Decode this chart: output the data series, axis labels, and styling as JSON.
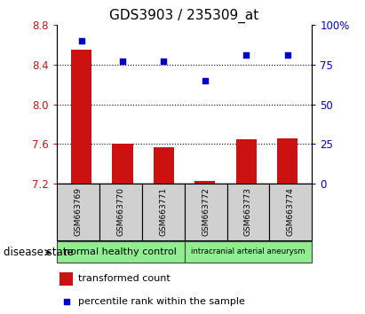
{
  "title": "GDS3903 / 235309_at",
  "samples": [
    "GSM663769",
    "GSM663770",
    "GSM663771",
    "GSM663772",
    "GSM663773",
    "GSM663774"
  ],
  "transformed_count": [
    8.55,
    7.6,
    7.57,
    7.23,
    7.65,
    7.66
  ],
  "percentile_rank": [
    90,
    77,
    77,
    65,
    81,
    81
  ],
  "ylim_left": [
    7.2,
    8.8
  ],
  "ylim_right": [
    0,
    100
  ],
  "yticks_left": [
    7.2,
    7.6,
    8.0,
    8.4,
    8.8
  ],
  "yticks_right": [
    0,
    25,
    50,
    75,
    100
  ],
  "bar_color": "#cc1111",
  "scatter_color": "#0000cc",
  "group1_label": "normal healthy control",
  "group2_label": "intracranial arterial aneurysm",
  "group_color": "#90ee90",
  "disease_state_label": "disease state",
  "legend_bar_label": "transformed count",
  "legend_scatter_label": "percentile rank within the sample",
  "title_fontsize": 11,
  "tick_fontsize": 8.5,
  "bar_width": 0.5,
  "dotted_lines": [
    7.6,
    8.0,
    8.4
  ]
}
